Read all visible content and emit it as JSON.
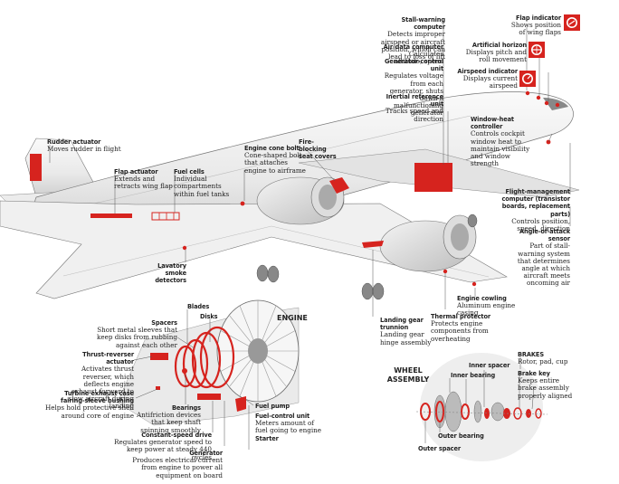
{
  "colors": {
    "accent": "#d6231e",
    "ink": "#222222",
    "line": "#555555",
    "panel": "#eeeeee"
  },
  "labels": {
    "rudder": {
      "title": "Rudder actuator",
      "desc": "Moves rudder in flight"
    },
    "flap_act": {
      "title": "Flap actuator",
      "desc": "Extends and retracts wing flap"
    },
    "fuel_cells": {
      "title": "Fuel cells",
      "desc": "Individual compartments within fuel tanks"
    },
    "cone_bolt": {
      "title": "Engine cone bolt",
      "desc": "Cone-shaped bolt that attaches engine to airframe"
    },
    "fire_seat": {
      "title": "Fire-blocking seat covers",
      "desc": ""
    },
    "stall": {
      "title": "Stall-warning computer",
      "desc": "Detects improper airspeed or aircraft position, which can lead to loss of lift"
    },
    "air_data": {
      "title": "Air-data computer",
      "desc": "Calculates altitude, speed"
    },
    "gen_ctrl": {
      "title": "Generator-control unit",
      "desc": "Regulates voltage from each generator, shuts down a malfunctioning generator"
    },
    "inertial": {
      "title": "Inertial reference unit",
      "desc": "Tracks speed and direction"
    },
    "flap_ind": {
      "title": "Flap indicator",
      "desc": "Shows position of wing flaps"
    },
    "horizon": {
      "title": "Artificial horizon",
      "desc": "Displays pitch and roll movement"
    },
    "airspeed": {
      "title": "Airspeed indicator",
      "desc": "Displays current airspeed"
    },
    "window_heat": {
      "title": "Window-heat controller",
      "desc": "Controls cockpit window heat to maintain visibility and window strength"
    },
    "flight_mgmt": {
      "title": "Flight-management computer (transistor boards, replacement parts)",
      "desc": "Controls position, speed, direction"
    },
    "aoa": {
      "title": "Angle-of-attack sensor",
      "desc": "Part of stall-warning system that determines angle at which aircraft meets oncoming air"
    },
    "lavatory": {
      "title": "Lavatory smoke detectors",
      "desc": ""
    },
    "cowling": {
      "title": "Engine cowling",
      "desc": "Aluminum engine casing"
    },
    "thermal": {
      "title": "Thermal protector",
      "desc": "Protects engine components from overheating"
    },
    "trunnion": {
      "title": "Landing gear trunnion",
      "desc": "Landing gear hinge assembly"
    },
    "blades": {
      "title": "Blades",
      "desc": ""
    },
    "disks": {
      "title": "Disks",
      "desc": ""
    },
    "spacers": {
      "title": "Spacers",
      "desc": "Short metal sleeves that keep disks from rubbing against each other"
    },
    "engine": {
      "title": "ENGINE",
      "desc": ""
    },
    "thrust_rev": {
      "title": "Thrust-reverser actuator",
      "desc": "Activates thrust reverser, which deflects engine exhaust forward to slow aircraft during landing"
    },
    "turbine_case": {
      "title": "Turbine exhaust case fairing-sleeve bushing",
      "desc": "Helps hold protective shell around core of engine"
    },
    "bearings": {
      "title": "Bearings",
      "desc": "Antifriction devices that keep shaft spinning smoothly"
    },
    "const_speed": {
      "title": "Constant-speed drive",
      "desc": "Regulates generator speed to keep power at steady 440 cycles"
    },
    "generator": {
      "title": "Generator",
      "desc": "Produces electrical current from engine to power all equipment on board"
    },
    "fuel_pump": {
      "title": "Fuel pump",
      "desc": ""
    },
    "fuel_ctrl": {
      "title": "Fuel-control unit",
      "desc": "Meters amount of fuel going to engine"
    },
    "starter": {
      "title": "Starter",
      "desc": ""
    },
    "wheel_assembly": {
      "title": "WHEEL ASSEMBLY",
      "desc": ""
    },
    "inner_spacer": {
      "title": "Inner spacer",
      "desc": ""
    },
    "inner_bearing": {
      "title": "Inner bearing",
      "desc": ""
    },
    "outer_bearing": {
      "title": "Outer bearing",
      "desc": ""
    },
    "outer_spacer": {
      "title": "Outer spacer",
      "desc": ""
    },
    "brakes": {
      "title": "BRAKES",
      "desc": "Rotor, pad, cup"
    },
    "brake_key": {
      "title": "Brake key",
      "desc": "Keeps entire brake assembly properly aligned"
    }
  }
}
